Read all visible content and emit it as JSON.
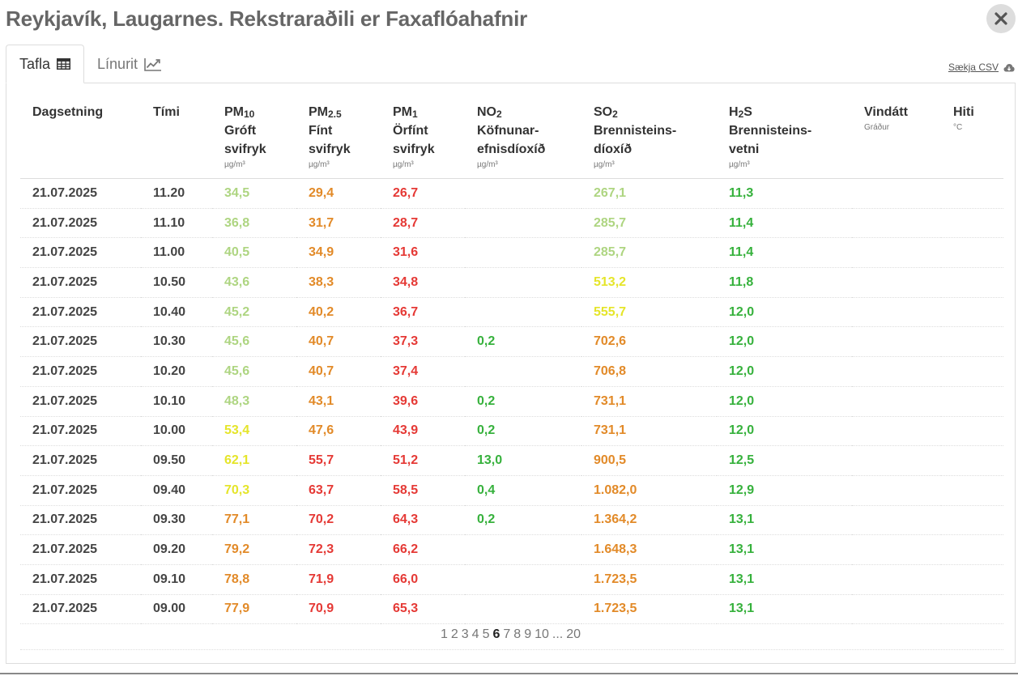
{
  "title": "Reykjavík, Laugarnes. Rekstraraðili er Faxaflóahafnir",
  "tabs": [
    {
      "label": "Tafla",
      "icon": "table-icon",
      "active": true
    },
    {
      "label": "Línurit",
      "icon": "line-chart-icon",
      "active": false
    }
  ],
  "csv_label": "Sækja CSV",
  "columns": [
    {
      "name": "Dagsetning",
      "sub": "",
      "line2": "",
      "line3": "",
      "unit": ""
    },
    {
      "name": "Tími",
      "sub": "",
      "line2": "",
      "line3": "",
      "unit": ""
    },
    {
      "name": "PM",
      "sub": "10",
      "line2": "Gróft",
      "line3": "svifryk",
      "unit": "µg/m³"
    },
    {
      "name": "PM",
      "sub": "2.5",
      "line2": "Fínt",
      "line3": "svifryk",
      "unit": "µg/m³"
    },
    {
      "name": "PM",
      "sub": "1",
      "line2": "Örfínt",
      "line3": "svifryk",
      "unit": "µg/m³"
    },
    {
      "name": "NO",
      "sub": "2",
      "line2": "Köfnunar-",
      "line3": "efnisdíoxíð",
      "unit": "µg/m³"
    },
    {
      "name": "SO",
      "sub": "2",
      "line2": "Brennisteins-",
      "line3": "díoxíð",
      "unit": "µg/m³"
    },
    {
      "name": "H",
      "sub": "2",
      "name2": "S",
      "line2": "Brennisteins-",
      "line3": "vetni",
      "unit": "µg/m³"
    },
    {
      "name": "Vindátt",
      "sub": "",
      "line2": "",
      "line3": "",
      "unit": "Gráður"
    },
    {
      "name": "Hiti",
      "sub": "",
      "line2": "",
      "line3": "",
      "unit": "°C"
    }
  ],
  "colors": {
    "good": "#aed581",
    "fair": "#e5e52a",
    "moderate": "#e28a28",
    "poor": "#e53935",
    "ok": "#36b13c"
  },
  "rows": [
    {
      "date": "21.07.2025",
      "time": "11.20",
      "pm10": [
        "34,5",
        "good"
      ],
      "pm25": [
        "29,4",
        "moderate"
      ],
      "pm1": [
        "26,7",
        "poor"
      ],
      "no2": [
        "",
        ""
      ],
      "so2": [
        "267,1",
        "good"
      ],
      "h2s": [
        "11,3",
        "ok"
      ],
      "wind": "",
      "temp": ""
    },
    {
      "date": "21.07.2025",
      "time": "11.10",
      "pm10": [
        "36,8",
        "good"
      ],
      "pm25": [
        "31,7",
        "moderate"
      ],
      "pm1": [
        "28,7",
        "poor"
      ],
      "no2": [
        "",
        ""
      ],
      "so2": [
        "285,7",
        "good"
      ],
      "h2s": [
        "11,4",
        "ok"
      ],
      "wind": "",
      "temp": ""
    },
    {
      "date": "21.07.2025",
      "time": "11.00",
      "pm10": [
        "40,5",
        "good"
      ],
      "pm25": [
        "34,9",
        "moderate"
      ],
      "pm1": [
        "31,6",
        "poor"
      ],
      "no2": [
        "",
        ""
      ],
      "so2": [
        "285,7",
        "good"
      ],
      "h2s": [
        "11,4",
        "ok"
      ],
      "wind": "",
      "temp": ""
    },
    {
      "date": "21.07.2025",
      "time": "10.50",
      "pm10": [
        "43,6",
        "good"
      ],
      "pm25": [
        "38,3",
        "moderate"
      ],
      "pm1": [
        "34,8",
        "poor"
      ],
      "no2": [
        "",
        ""
      ],
      "so2": [
        "513,2",
        "fair"
      ],
      "h2s": [
        "11,8",
        "ok"
      ],
      "wind": "",
      "temp": ""
    },
    {
      "date": "21.07.2025",
      "time": "10.40",
      "pm10": [
        "45,2",
        "good"
      ],
      "pm25": [
        "40,2",
        "moderate"
      ],
      "pm1": [
        "36,7",
        "poor"
      ],
      "no2": [
        "",
        ""
      ],
      "so2": [
        "555,7",
        "fair"
      ],
      "h2s": [
        "12,0",
        "ok"
      ],
      "wind": "",
      "temp": ""
    },
    {
      "date": "21.07.2025",
      "time": "10.30",
      "pm10": [
        "45,6",
        "good"
      ],
      "pm25": [
        "40,7",
        "moderate"
      ],
      "pm1": [
        "37,3",
        "poor"
      ],
      "no2": [
        "0,2",
        "ok"
      ],
      "so2": [
        "702,6",
        "moderate"
      ],
      "h2s": [
        "12,0",
        "ok"
      ],
      "wind": "",
      "temp": ""
    },
    {
      "date": "21.07.2025",
      "time": "10.20",
      "pm10": [
        "45,6",
        "good"
      ],
      "pm25": [
        "40,7",
        "moderate"
      ],
      "pm1": [
        "37,4",
        "poor"
      ],
      "no2": [
        "",
        ""
      ],
      "so2": [
        "706,8",
        "moderate"
      ],
      "h2s": [
        "12,0",
        "ok"
      ],
      "wind": "",
      "temp": ""
    },
    {
      "date": "21.07.2025",
      "time": "10.10",
      "pm10": [
        "48,3",
        "good"
      ],
      "pm25": [
        "43,1",
        "moderate"
      ],
      "pm1": [
        "39,6",
        "poor"
      ],
      "no2": [
        "0,2",
        "ok"
      ],
      "so2": [
        "731,1",
        "moderate"
      ],
      "h2s": [
        "12,0",
        "ok"
      ],
      "wind": "",
      "temp": ""
    },
    {
      "date": "21.07.2025",
      "time": "10.00",
      "pm10": [
        "53,4",
        "fair"
      ],
      "pm25": [
        "47,6",
        "moderate"
      ],
      "pm1": [
        "43,9",
        "poor"
      ],
      "no2": [
        "0,2",
        "ok"
      ],
      "so2": [
        "731,1",
        "moderate"
      ],
      "h2s": [
        "12,0",
        "ok"
      ],
      "wind": "",
      "temp": ""
    },
    {
      "date": "21.07.2025",
      "time": "09.50",
      "pm10": [
        "62,1",
        "fair"
      ],
      "pm25": [
        "55,7",
        "poor"
      ],
      "pm1": [
        "51,2",
        "poor"
      ],
      "no2": [
        "13,0",
        "ok"
      ],
      "so2": [
        "900,5",
        "moderate"
      ],
      "h2s": [
        "12,5",
        "ok"
      ],
      "wind": "",
      "temp": ""
    },
    {
      "date": "21.07.2025",
      "time": "09.40",
      "pm10": [
        "70,3",
        "fair"
      ],
      "pm25": [
        "63,7",
        "poor"
      ],
      "pm1": [
        "58,5",
        "poor"
      ],
      "no2": [
        "0,4",
        "ok"
      ],
      "so2": [
        "1.082,0",
        "moderate"
      ],
      "h2s": [
        "12,9",
        "ok"
      ],
      "wind": "",
      "temp": ""
    },
    {
      "date": "21.07.2025",
      "time": "09.30",
      "pm10": [
        "77,1",
        "moderate"
      ],
      "pm25": [
        "70,2",
        "poor"
      ],
      "pm1": [
        "64,3",
        "poor"
      ],
      "no2": [
        "0,2",
        "ok"
      ],
      "so2": [
        "1.364,2",
        "moderate"
      ],
      "h2s": [
        "13,1",
        "ok"
      ],
      "wind": "",
      "temp": ""
    },
    {
      "date": "21.07.2025",
      "time": "09.20",
      "pm10": [
        "79,2",
        "moderate"
      ],
      "pm25": [
        "72,3",
        "poor"
      ],
      "pm1": [
        "66,2",
        "poor"
      ],
      "no2": [
        "",
        ""
      ],
      "so2": [
        "1.648,3",
        "moderate"
      ],
      "h2s": [
        "13,1",
        "ok"
      ],
      "wind": "",
      "temp": ""
    },
    {
      "date": "21.07.2025",
      "time": "09.10",
      "pm10": [
        "78,8",
        "moderate"
      ],
      "pm25": [
        "71,9",
        "poor"
      ],
      "pm1": [
        "66,0",
        "poor"
      ],
      "no2": [
        "",
        ""
      ],
      "so2": [
        "1.723,5",
        "moderate"
      ],
      "h2s": [
        "13,1",
        "ok"
      ],
      "wind": "",
      "temp": ""
    },
    {
      "date": "21.07.2025",
      "time": "09.00",
      "pm10": [
        "77,9",
        "moderate"
      ],
      "pm25": [
        "70,9",
        "poor"
      ],
      "pm1": [
        "65,3",
        "poor"
      ],
      "no2": [
        "",
        ""
      ],
      "so2": [
        "1.723,5",
        "moderate"
      ],
      "h2s": [
        "13,1",
        "ok"
      ],
      "wind": "",
      "temp": ""
    }
  ],
  "pagination": {
    "pages": [
      "1",
      "2",
      "3",
      "4",
      "5",
      "6",
      "7",
      "8",
      "9",
      "10",
      "...",
      "20"
    ],
    "current": "6"
  }
}
